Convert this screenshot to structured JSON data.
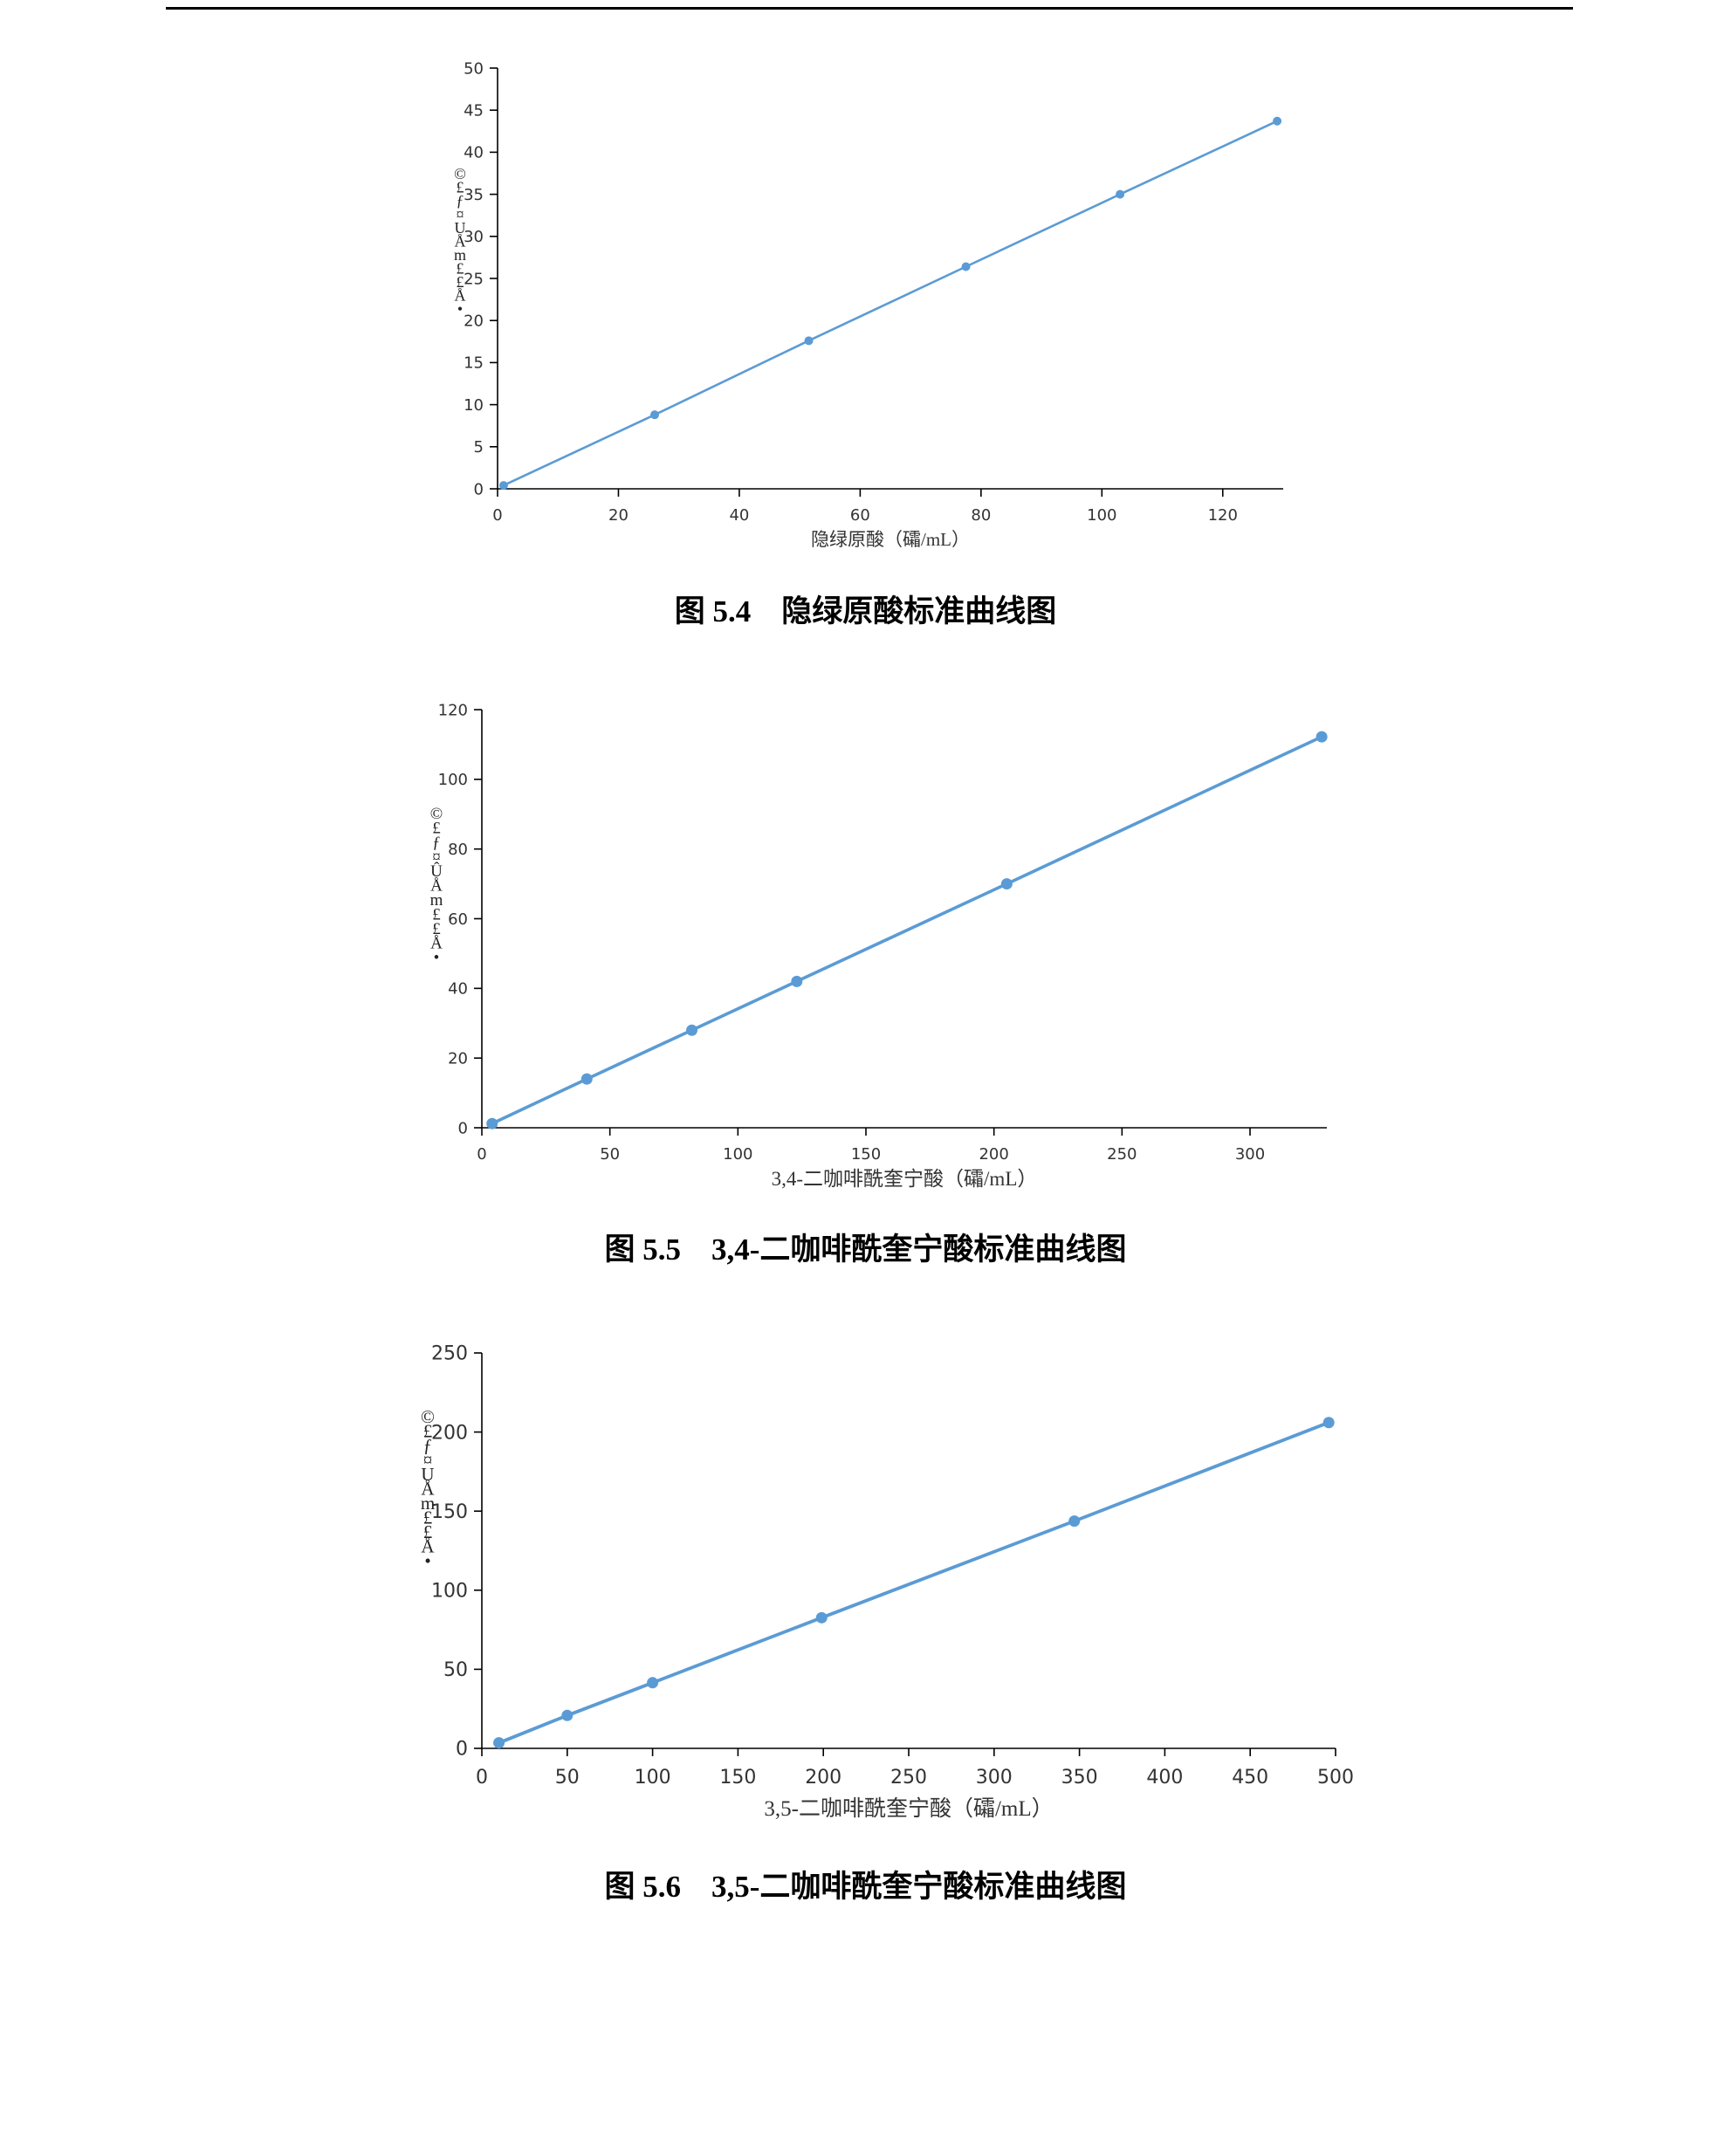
{
  "page": {
    "header_text": "",
    "colors": {
      "series": "#5b9bd5",
      "axis": "#000000",
      "text": "#000000"
    }
  },
  "figures": [
    {
      "caption": "图 5.4    隐绿原酸标准曲线图"
    },
    {
      "caption": "图 5.5    3,4-二咖啡酰奎宁酸标准曲线图"
    },
    {
      "caption": "图 5.6    3,5-二咖啡酰奎宁酸标准曲线图"
    }
  ],
  "chart_data": [
    {
      "type": "line",
      "title": "",
      "xlabel": "隐绿原酸（礵/mL）",
      "ylabel": "©£ƒ¤UÅm££Å•",
      "xlim": [
        0,
        130
      ],
      "ylim": [
        0,
        50
      ],
      "xticks": [
        "0",
        "20",
        "40",
        "60",
        "80",
        "100",
        "120"
      ],
      "yticks": [
        "0",
        "5",
        "10",
        "15",
        "20",
        "25",
        "30",
        "35",
        "40",
        "45",
        "50"
      ],
      "grid": false,
      "legend": "none",
      "series": [
        {
          "x": [
            1,
            26,
            51.5,
            77.5,
            103,
            129
          ],
          "y": [
            0.4,
            8.8,
            17.6,
            26.4,
            35.0,
            43.7
          ]
        }
      ]
    },
    {
      "type": "line",
      "title": "",
      "xlabel": "3,4-二咖啡酰奎宁酸（礵/mL）",
      "ylabel": "©£ƒ¤ÛÅm££Å•",
      "xlim": [
        0,
        330
      ],
      "ylim": [
        0,
        120
      ],
      "xticks": [
        "0",
        "50",
        "100",
        "150",
        "200",
        "250",
        "300"
      ],
      "yticks": [
        "0",
        "20",
        "40",
        "60",
        "80",
        "100",
        "120"
      ],
      "grid": false,
      "legend": "none",
      "series": [
        {
          "x": [
            4,
            41,
            82,
            123,
            205,
            328
          ],
          "y": [
            1.2,
            14.0,
            28.0,
            42.0,
            70.0,
            112.2
          ]
        }
      ]
    },
    {
      "type": "line",
      "title": "",
      "xlabel": "3,5-二咖啡酰奎宁酸（礵/mL）",
      "ylabel": "©£ƒ¤UÅm££Å•",
      "xlim": [
        0,
        500
      ],
      "ylim": [
        0,
        250
      ],
      "xticks": [
        "0",
        "50",
        "100",
        "150",
        "200",
        "250",
        "300",
        "350",
        "400",
        "450",
        "500"
      ],
      "yticks": [
        "0",
        "50",
        "100",
        "150",
        "200",
        "250"
      ],
      "grid": false,
      "legend": "none",
      "series": [
        {
          "x": [
            10,
            50,
            100,
            199,
            347,
            496
          ],
          "y": [
            3.5,
            20.8,
            41.5,
            82.6,
            143.7,
            206.0
          ]
        }
      ]
    }
  ]
}
